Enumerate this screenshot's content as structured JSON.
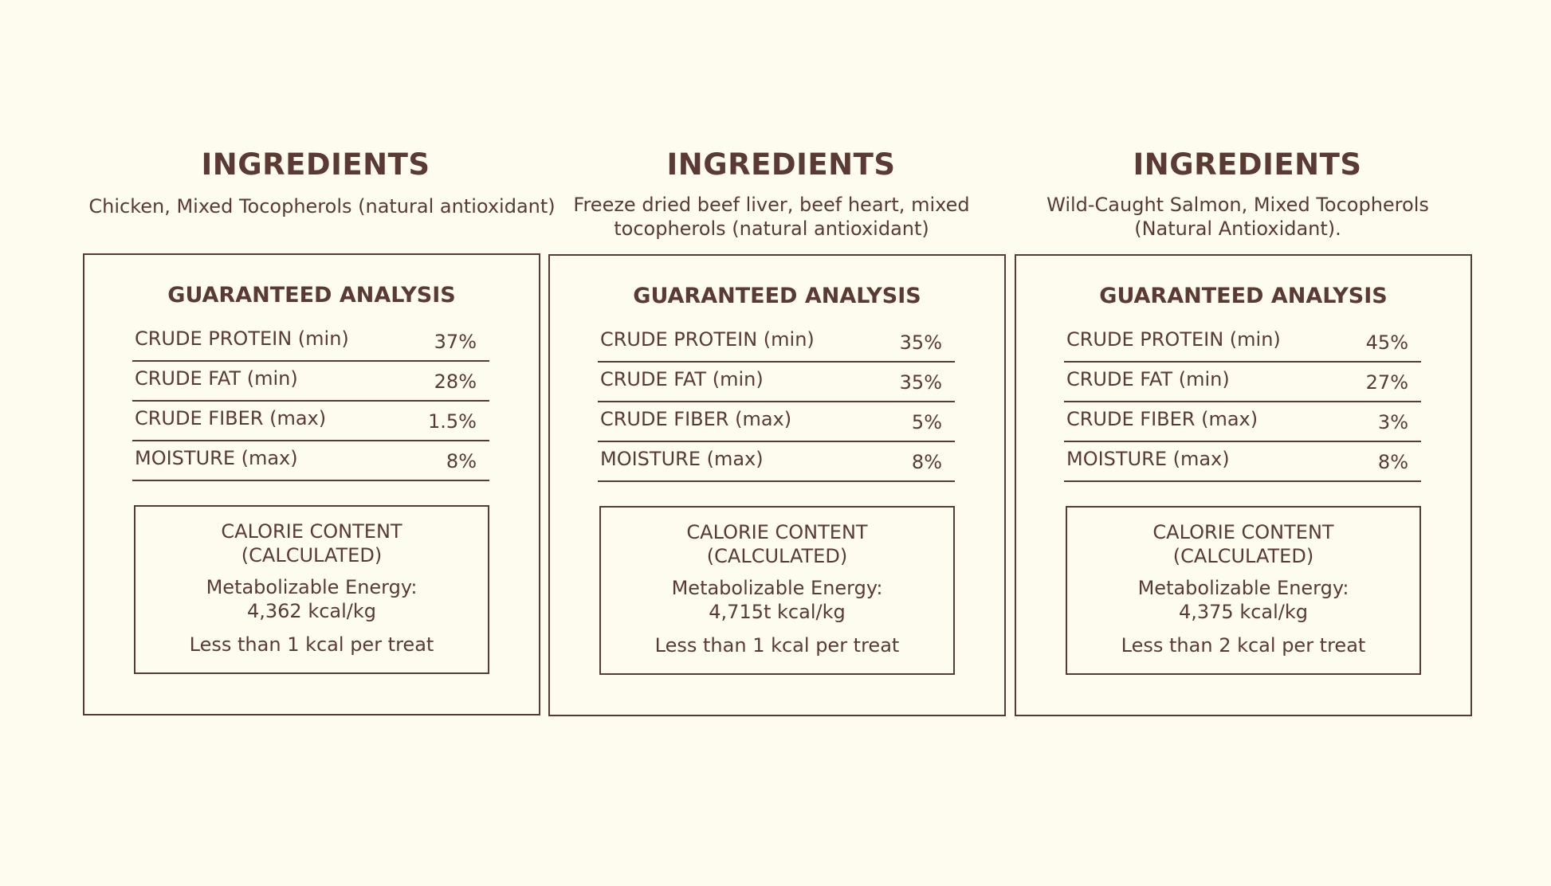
{
  "products": [
    {
      "ingredients_heading": "INGREDIENTS",
      "ingredients_text": "Chicken, Mixed Tocopherols (natural antioxidant)",
      "analysis_title": "GUARANTEED ANALYSIS",
      "analysis_rows": [
        {
          "label": "CRUDE PROTEIN (min)",
          "value": "37%"
        },
        {
          "label": "CRUDE FAT (min)",
          "value": "28%"
        },
        {
          "label": "CRUDE FIBER (max)",
          "value": "1.5%"
        },
        {
          "label": "MOISTURE (max)",
          "value": "8%"
        }
      ],
      "calorie_title_line1": "CALORIE CONTENT",
      "calorie_title_line2": "(CALCULATED)",
      "energy_label": "Metabolizable Energy:",
      "energy_value": "4,362 kcal/kg",
      "per_treat": "Less than 1 kcal per treat"
    },
    {
      "ingredients_heading": "INGREDIENTS",
      "ingredients_text": "Freeze dried beef liver, beef heart, mixed tocopherols (natural antioxidant)",
      "analysis_title": "GUARANTEED ANALYSIS",
      "analysis_rows": [
        {
          "label": "CRUDE PROTEIN (min)",
          "value": "35%"
        },
        {
          "label": "CRUDE FAT (min)",
          "value": "35%"
        },
        {
          "label": "CRUDE FIBER (max)",
          "value": "5%"
        },
        {
          "label": "MOISTURE (max)",
          "value": "8%"
        }
      ],
      "calorie_title_line1": "CALORIE CONTENT",
      "calorie_title_line2": "(CALCULATED)",
      "energy_label": "Metabolizable Energy:",
      "energy_value": "4,715t kcal/kg",
      "per_treat": "Less than 1 kcal per treat"
    },
    {
      "ingredients_heading": "INGREDIENTS",
      "ingredients_text": "Wild-Caught Salmon, Mixed Tocopherols (Natural Antioxidant).",
      "analysis_title": "GUARANTEED ANALYSIS",
      "analysis_rows": [
        {
          "label": "CRUDE PROTEIN (min)",
          "value": "45%"
        },
        {
          "label": "CRUDE FAT (min)",
          "value": "27%"
        },
        {
          "label": "CRUDE FIBER (max)",
          "value": "3%"
        },
        {
          "label": "MOISTURE (max)",
          "value": "8%"
        }
      ],
      "calorie_title_line1": "CALORIE CONTENT",
      "calorie_title_line2": "(CALCULATED)",
      "energy_label": "Metabolizable Energy:",
      "energy_value": "4,375 kcal/kg",
      "per_treat": "Less than 2 kcal per treat"
    }
  ]
}
